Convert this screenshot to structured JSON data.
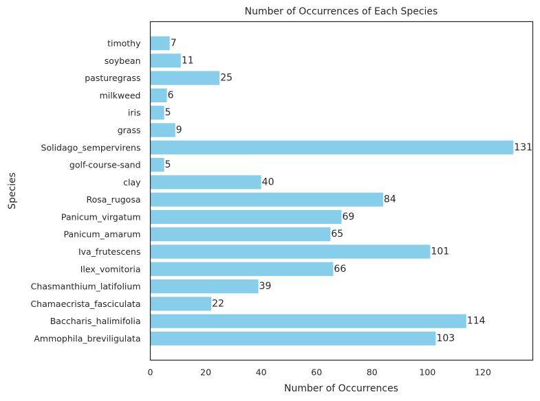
{
  "chart_data": {
    "type": "bar",
    "orientation": "horizontal",
    "title": "Number of Occurrences of Each Species",
    "xlabel": "Number of Occurrences",
    "ylabel": "Species",
    "xlim": [
      0,
      138
    ],
    "x_ticks": [
      0,
      20,
      40,
      60,
      80,
      100,
      120
    ],
    "grid": false,
    "bar_color": "#87CEEB",
    "categories": [
      "Ammophila_breviligulata",
      "Baccharis_halimifolia",
      "Chamaecrista_fasciculata",
      "Chasmanthium_latifolium",
      "Ilex_vomitoria",
      "Iva_frutescens",
      "Panicum_amarum",
      "Panicum_virgatum",
      "Rosa_rugosa",
      "clay",
      "golf-course-sand",
      "Solidago_sempervirens",
      "grass",
      "iris",
      "milkweed",
      "pasturegrass",
      "soybean",
      "timothy"
    ],
    "values": [
      103,
      114,
      22,
      39,
      66,
      101,
      65,
      69,
      84,
      40,
      5,
      131,
      9,
      5,
      6,
      25,
      11,
      7
    ]
  }
}
